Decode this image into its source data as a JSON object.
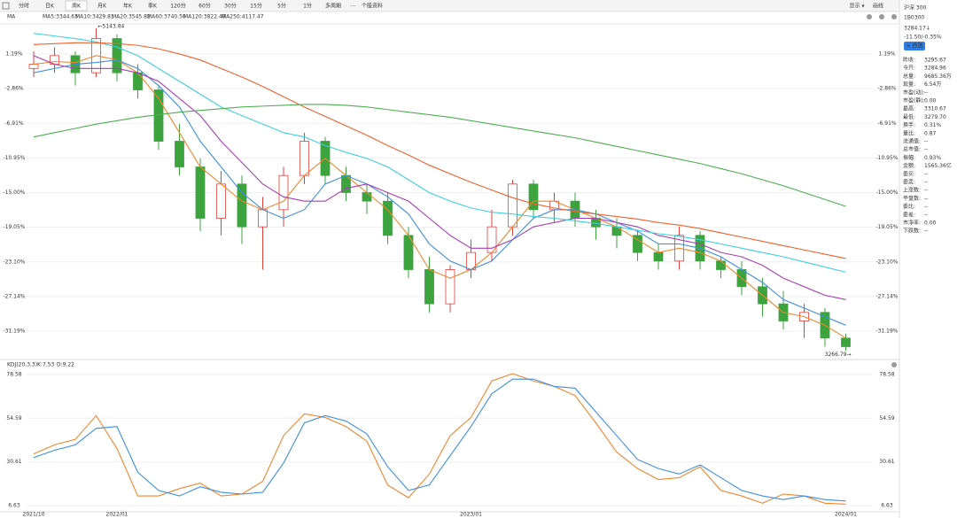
{
  "toolbar": {
    "tabs": [
      "分时",
      "日K",
      "周K",
      "月K",
      "年K",
      "季K",
      "120分",
      "60分",
      "30分",
      "15分",
      "5分",
      "1分",
      "多周期",
      "⋯",
      "个股资料"
    ],
    "active_index": 2,
    "right": [
      "显示 ▾",
      "画线"
    ]
  },
  "chart_data": [
    {
      "type": "candlestick",
      "title": "MA",
      "ylim": [
        -34.4,
        4.71
      ],
      "yticks": [
        {
          "value": 1.19,
          "label": "1.19%"
        },
        {
          "value": -2.86,
          "label": "-2.86%"
        },
        {
          "value": -6.91,
          "label": "-6.91%"
        },
        {
          "value": -10.95,
          "label": "-10.95%"
        },
        {
          "value": -15.0,
          "label": "-15.00%"
        },
        {
          "value": -19.05,
          "label": "-19.05%"
        },
        {
          "value": -23.1,
          "label": "-23.10%"
        },
        {
          "value": -27.14,
          "label": "-27.14%"
        },
        {
          "value": -31.19,
          "label": "-31.19%"
        }
      ],
      "grid": true,
      "up_color": "#e0403c",
      "down_color": "#3da33f",
      "annotations": [
        "←5143.84",
        "3266.79→"
      ],
      "candles": [
        [
          -0.5,
          0,
          1.5,
          -1.5
        ],
        [
          0,
          1,
          2,
          -1
        ],
        [
          1,
          -1,
          1.5,
          -2.5
        ],
        [
          -1,
          3,
          4.2,
          -1.5
        ],
        [
          3,
          -1,
          3.5,
          -2
        ],
        [
          -1,
          -3,
          0,
          -4
        ],
        [
          -3,
          -9,
          -2.5,
          -10
        ],
        [
          -9,
          -12,
          -7,
          -13
        ],
        [
          -12,
          -18,
          -11,
          -19.5
        ],
        [
          -18,
          -14,
          -12.5,
          -20
        ],
        [
          -14,
          -19,
          -13,
          -21
        ],
        [
          -19,
          -17,
          -15.5,
          -24
        ],
        [
          -17,
          -13,
          -12,
          -19
        ],
        [
          -13,
          -9,
          -8,
          -14
        ],
        [
          -9,
          -13,
          -8.5,
          -14
        ],
        [
          -13,
          -15,
          -12,
          -16
        ],
        [
          -15,
          -16,
          -14,
          -17.5
        ],
        [
          -16,
          -20,
          -15,
          -21
        ],
        [
          -20,
          -24,
          -19,
          -25
        ],
        [
          -24,
          -28,
          -22.5,
          -29
        ],
        [
          -28,
          -24,
          -23.5,
          -29
        ],
        [
          -24,
          -22,
          -20.5,
          -25
        ],
        [
          -22,
          -19,
          -17,
          -23
        ],
        [
          -19,
          -14,
          -13.5,
          -20
        ],
        [
          -14,
          -17,
          -13.5,
          -18
        ],
        [
          -17,
          -16,
          -15,
          -18.5
        ],
        [
          -16,
          -18,
          -15,
          -19
        ],
        [
          -18,
          -19,
          -17,
          -20.5
        ],
        [
          -19,
          -20,
          -18,
          -21.5
        ],
        [
          -20,
          -22,
          -19.5,
          -23
        ],
        [
          -22,
          -23,
          -21,
          -24
        ],
        [
          -23,
          -20,
          -19,
          -24
        ],
        [
          -20,
          -23,
          -19.5,
          -24
        ],
        [
          -23,
          -24,
          -22.5,
          -25
        ],
        [
          -24,
          -26,
          -23,
          -27
        ],
        [
          -26,
          -28,
          -25,
          -29.5
        ],
        [
          -28,
          -30,
          -26.5,
          -31
        ],
        [
          -30,
          -29,
          -28,
          -32
        ],
        [
          -29,
          -32,
          -28.5,
          -33
        ],
        [
          -32,
          -33,
          -31.5,
          -33.5
        ]
      ],
      "series": [
        {
          "name": "MA5:3344.63",
          "color": "#f0862c",
          "values": [
            0,
            0.3,
            0.2,
            1,
            0.5,
            -1,
            -4,
            -8,
            -12,
            -14,
            -16,
            -17,
            -16,
            -13,
            -11,
            -13,
            -15,
            -17,
            -20,
            -24,
            -25,
            -24,
            -22,
            -19,
            -16,
            -16,
            -17,
            -18,
            -19,
            -20.5,
            -22,
            -21.5,
            -22,
            -23,
            -25,
            -27,
            -29,
            -29.5,
            -30.5,
            -32
          ]
        },
        {
          "name": "MA10:3429.81",
          "color": "#3d8fe0",
          "values": [
            -1,
            -0.5,
            0,
            0.2,
            0.5,
            -0.5,
            -2.5,
            -5,
            -9,
            -12,
            -15,
            -17,
            -18,
            -17,
            -14,
            -13,
            -14,
            -15.5,
            -17.5,
            -21,
            -23,
            -24,
            -23,
            -20.5,
            -18,
            -17,
            -17,
            -17.5,
            -18.5,
            -19.5,
            -21,
            -21,
            -21.5,
            -22.5,
            -24,
            -25.5,
            -27.5,
            -28.5,
            -29.5,
            -30.5
          ]
        },
        {
          "name": "MA20:3545.82",
          "color": "#a63fb5",
          "values": [
            1,
            0,
            -0.5,
            -0.5,
            -0.5,
            -1,
            -2,
            -4,
            -6,
            -9,
            -11.5,
            -14,
            -15.5,
            -16,
            -16,
            -14.5,
            -14,
            -15,
            -16,
            -18,
            -20,
            -21.5,
            -21.5,
            -20.5,
            -19,
            -18.5,
            -18,
            -18,
            -18.5,
            -19,
            -20,
            -20.5,
            -21,
            -22,
            -22.5,
            -23.5,
            -25,
            -26,
            -27,
            -27.5
          ]
        },
        {
          "name": "MA60:3740.50",
          "color": "#3fcfe0",
          "values": [
            3.6,
            3.3,
            3,
            2.6,
            2,
            1,
            -0.5,
            -2,
            -3.5,
            -5,
            -6,
            -7,
            -8,
            -8.5,
            -9.5,
            -10.3,
            -11,
            -12,
            -13.5,
            -15,
            -16,
            -16.8,
            -17.3,
            -17.5,
            -17.8,
            -18,
            -18.3,
            -18.6,
            -19,
            -19.4,
            -19.8,
            -20.1,
            -20.5,
            -21,
            -21.5,
            -22,
            -22.5,
            -23.1,
            -23.7,
            -24.3
          ]
        },
        {
          "name": "MA120:3822.40",
          "color": "#f0602c",
          "values": [
            2.3,
            2.4,
            2.5,
            2.5,
            2.4,
            2.2,
            1.8,
            1.2,
            0.5,
            -0.5,
            -1.5,
            -2.6,
            -3.8,
            -5,
            -6.1,
            -7.2,
            -8.3,
            -9.5,
            -10.6,
            -11.8,
            -12.8,
            -13.8,
            -14.7,
            -15.6,
            -16.3,
            -16.8,
            -17.2,
            -17.5,
            -17.8,
            -18.1,
            -18.5,
            -18.8,
            -19.2,
            -19.7,
            -20.2,
            -20.7,
            -21.2,
            -21.7,
            -22.2,
            -22.7
          ]
        },
        {
          "name": "MA250:4117.47",
          "color": "#4caf50",
          "values": [
            -8.5,
            -8,
            -7.5,
            -7,
            -6.6,
            -6.2,
            -5.9,
            -5.6,
            -5.4,
            -5.2,
            -5,
            -4.9,
            -4.8,
            -4.7,
            -4.7,
            -4.8,
            -5,
            -5.3,
            -5.6,
            -5.9,
            -6.2,
            -6.6,
            -7,
            -7.4,
            -7.8,
            -8.2,
            -8.6,
            -9.1,
            -9.6,
            -10.1,
            -10.6,
            -11.1,
            -11.6,
            -12.2,
            -12.8,
            -13.5,
            -14.2,
            -15,
            -15.8,
            -16.6
          ]
        }
      ]
    },
    {
      "type": "line",
      "title": "KDJ(20,3,3)",
      "categories": [
        "2021/10",
        null,
        null,
        null,
        "2022/01",
        null,
        null,
        null,
        null,
        null,
        null,
        null,
        null,
        null,
        null,
        null,
        null,
        null,
        null,
        null,
        null,
        "2023/01",
        null,
        null,
        null,
        null,
        null,
        null,
        null,
        null,
        null,
        null,
        null,
        null,
        null,
        null,
        null,
        null,
        null,
        "2024/01"
      ],
      "ylim": [
        3.3,
        81.9
      ],
      "yticks": [
        78.58,
        54.59,
        30.61,
        6.63
      ],
      "grid": true,
      "series": [
        {
          "name": "K:7.53",
          "color": "#f0862c",
          "values": [
            35,
            40,
            43,
            56,
            38,
            12,
            12,
            16,
            19,
            12,
            13,
            20,
            45,
            57,
            55,
            50,
            42,
            18,
            11,
            24,
            45,
            55,
            75,
            79,
            75,
            72,
            67,
            52,
            36,
            27,
            21,
            22,
            28,
            15,
            12,
            8,
            13,
            12,
            8,
            7.53
          ]
        },
        {
          "name": "D:9.22",
          "color": "#3d8fe0",
          "values": [
            33,
            37,
            40,
            49,
            50,
            25,
            15,
            12,
            17,
            14,
            13,
            14,
            30,
            52,
            56,
            53,
            46,
            28,
            15,
            18,
            34,
            50,
            68,
            76,
            76,
            72,
            71,
            58,
            45,
            32,
            27,
            24,
            29,
            22,
            15,
            12,
            10,
            12,
            10,
            9.22
          ]
        }
      ]
    }
  ],
  "quote": {
    "name": "沪深 300",
    "code": "1B0300",
    "price": "3284.17↓",
    "change": "-11.50/-0.35%",
    "button": "+ 自选",
    "stats": [
      {
        "label": "昨收:",
        "value": "3295.67"
      },
      {
        "label": "今开:",
        "value": "3284.96",
        "color": "#e0403c"
      },
      {
        "label": "总量:",
        "value": "9685.36万"
      },
      {
        "label": "现量:",
        "value": "6.54万"
      },
      {
        "label": "市盈(动):",
        "value": "--"
      },
      {
        "label": "市盈(静):",
        "value": "0.00"
      },
      {
        "label": "最高:",
        "value": "3310.67",
        "color": "#e0403c"
      },
      {
        "label": "最低:",
        "value": "3279.70",
        "color": "#3da33f"
      },
      {
        "label": "换手:",
        "value": "0.31%"
      },
      {
        "label": "量比:",
        "value": "0.87"
      },
      {
        "label": "流通值:",
        "value": "--"
      },
      {
        "label": "总市值:",
        "value": "--"
      },
      {
        "label": "振幅:",
        "value": "0.93%"
      },
      {
        "label": "金额:",
        "value": "1565.36亿"
      },
      {
        "label": "委买:",
        "value": "--"
      },
      {
        "label": "委卖:",
        "value": "--"
      },
      {
        "label": "上涨数:",
        "value": "--"
      },
      {
        "label": "平盘数:",
        "value": "--"
      },
      {
        "label": "委比:",
        "value": "--"
      },
      {
        "label": "委差:",
        "value": "--"
      },
      {
        "label": "市净率:",
        "value": "0.00"
      },
      {
        "label": "下跌数:",
        "value": "--"
      }
    ]
  }
}
